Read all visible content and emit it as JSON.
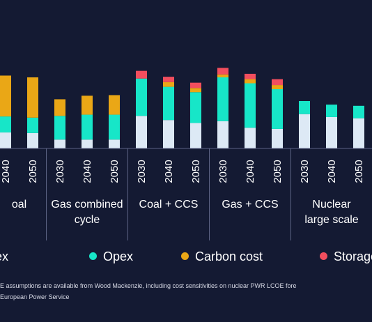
{
  "chart_data": {
    "type": "bar",
    "stacked": true,
    "categories": [
      "2040",
      "2050",
      "2030",
      "2040",
      "2050",
      "2030",
      "2040",
      "2050",
      "2030",
      "2040",
      "2050",
      "2030",
      "2040",
      "2050"
    ],
    "groups": [
      {
        "label": "oal",
        "count": 2
      },
      {
        "label": "Gas combined cycle",
        "count": 3
      },
      {
        "label": "Coal + CCS",
        "count": 3
      },
      {
        "label": "Gas + CCS",
        "count": 3
      },
      {
        "label": "Nuclear large scale",
        "count": 3
      }
    ],
    "series": [
      {
        "name": "Capex",
        "color": "#dde9f5",
        "values": [
          27,
          26,
          15,
          15,
          15,
          55,
          48,
          43,
          46,
          35,
          33,
          58,
          53,
          51
        ]
      },
      {
        "name": "Opex",
        "color": "#17e6c8",
        "values": [
          27,
          26,
          40,
          42,
          42,
          63,
          56,
          52,
          74,
          75,
          67,
          22,
          21,
          21
        ]
      },
      {
        "name": "Carbon cost",
        "color": "#eaa716",
        "values": [
          69,
          68,
          28,
          32,
          33,
          0,
          8,
          7,
          5,
          7,
          7,
          0,
          0,
          0
        ]
      },
      {
        "name": "Storage",
        "color": "#f24e5e",
        "values": [
          0,
          0,
          0,
          0,
          0,
          13,
          9,
          9,
          11,
          9,
          10,
          0,
          0,
          0
        ]
      }
    ],
    "ylim": [
      0,
      165
    ],
    "grid": false,
    "legend_position": "bottom"
  },
  "legend": [
    "Capex",
    "Opex",
    "Carbon cost",
    "Storage"
  ],
  "footnotes": [
    "E assumptions are available from Wood Mackenzie, including cost sensitivities on nuclear PWR LCOE fore",
    "European Power Service"
  ]
}
